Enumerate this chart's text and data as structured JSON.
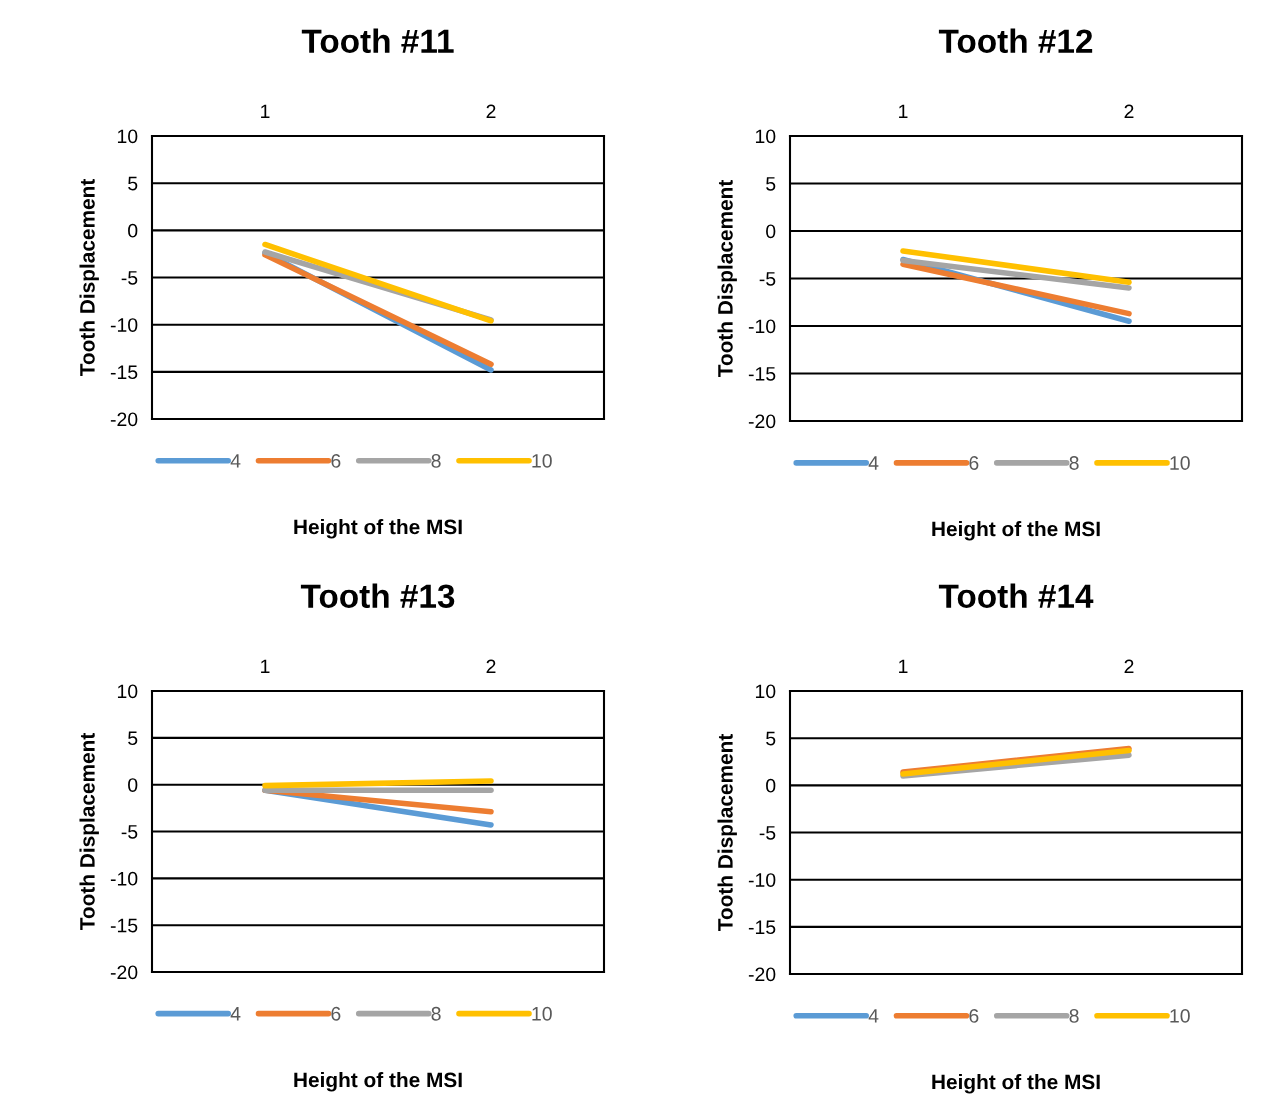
{
  "chart_data": [
    {
      "type": "line",
      "title": "Tooth #11",
      "xlabel": "Height of the MSI",
      "ylabel": "Tooth Displacement",
      "categories": [
        "1",
        "2"
      ],
      "ylim": [
        -20,
        10
      ],
      "yticks": [
        -20,
        -15,
        -10,
        -5,
        0,
        5,
        10
      ],
      "grid": "y",
      "legend": "bottom",
      "marker": "none",
      "line_style": "solid",
      "series": [
        {
          "name": "4",
          "color": "#5b9bd5",
          "values": [
            -2.4,
            -14.8
          ]
        },
        {
          "name": "6",
          "color": "#ed7d31",
          "values": [
            -2.6,
            -14.2
          ]
        },
        {
          "name": "8",
          "color": "#a5a5a5",
          "values": [
            -2.3,
            -9.5
          ]
        },
        {
          "name": "10",
          "color": "#ffc000",
          "values": [
            -1.5,
            -9.6
          ]
        }
      ]
    },
    {
      "type": "line",
      "title": "Tooth #12",
      "xlabel": "Height of the MSI",
      "ylabel": "Tooth Displacement",
      "categories": [
        "1",
        "2"
      ],
      "ylim": [
        -20,
        10
      ],
      "yticks": [
        -20,
        -15,
        -10,
        -5,
        0,
        5,
        10
      ],
      "grid": "y",
      "legend": "bottom",
      "marker": "none",
      "line_style": "solid",
      "series": [
        {
          "name": "4",
          "color": "#5b9bd5",
          "values": [
            -3.0,
            -9.5
          ]
        },
        {
          "name": "6",
          "color": "#ed7d31",
          "values": [
            -3.5,
            -8.7
          ]
        },
        {
          "name": "8",
          "color": "#a5a5a5",
          "values": [
            -3.1,
            -6.0
          ]
        },
        {
          "name": "10",
          "color": "#ffc000",
          "values": [
            -2.1,
            -5.4
          ]
        }
      ]
    },
    {
      "type": "line",
      "title": "Tooth #13",
      "xlabel": "Height of the MSI",
      "ylabel": "Tooth Displacement",
      "categories": [
        "1",
        "2"
      ],
      "ylim": [
        -20,
        10
      ],
      "yticks": [
        -20,
        -15,
        -10,
        -5,
        0,
        5,
        10
      ],
      "grid": "y",
      "legend": "bottom",
      "marker": "none",
      "line_style": "solid",
      "series": [
        {
          "name": "4",
          "color": "#5b9bd5",
          "values": [
            -0.6,
            -4.3
          ]
        },
        {
          "name": "6",
          "color": "#ed7d31",
          "values": [
            -0.6,
            -2.9
          ]
        },
        {
          "name": "8",
          "color": "#a5a5a5",
          "values": [
            -0.6,
            -0.6
          ]
        },
        {
          "name": "10",
          "color": "#ffc000",
          "values": [
            -0.1,
            0.4
          ]
        }
      ]
    },
    {
      "type": "line",
      "title": "Tooth #14",
      "xlabel": "Height of the MSI",
      "ylabel": "Tooth Displacement",
      "categories": [
        "1",
        "2"
      ],
      "ylim": [
        -20,
        10
      ],
      "yticks": [
        -20,
        -15,
        -10,
        -5,
        0,
        5,
        10
      ],
      "grid": "y",
      "legend": "bottom",
      "marker": "none",
      "line_style": "solid",
      "series": [
        {
          "name": "4",
          "color": "#5b9bd5",
          "values": [
            null,
            null
          ]
        },
        {
          "name": "6",
          "color": "#ed7d31",
          "values": [
            1.4,
            3.9
          ]
        },
        {
          "name": "8",
          "color": "#a5a5a5",
          "values": [
            1.0,
            3.2
          ]
        },
        {
          "name": "10",
          "color": "#ffc000",
          "values": [
            1.2,
            3.7
          ]
        }
      ]
    }
  ]
}
